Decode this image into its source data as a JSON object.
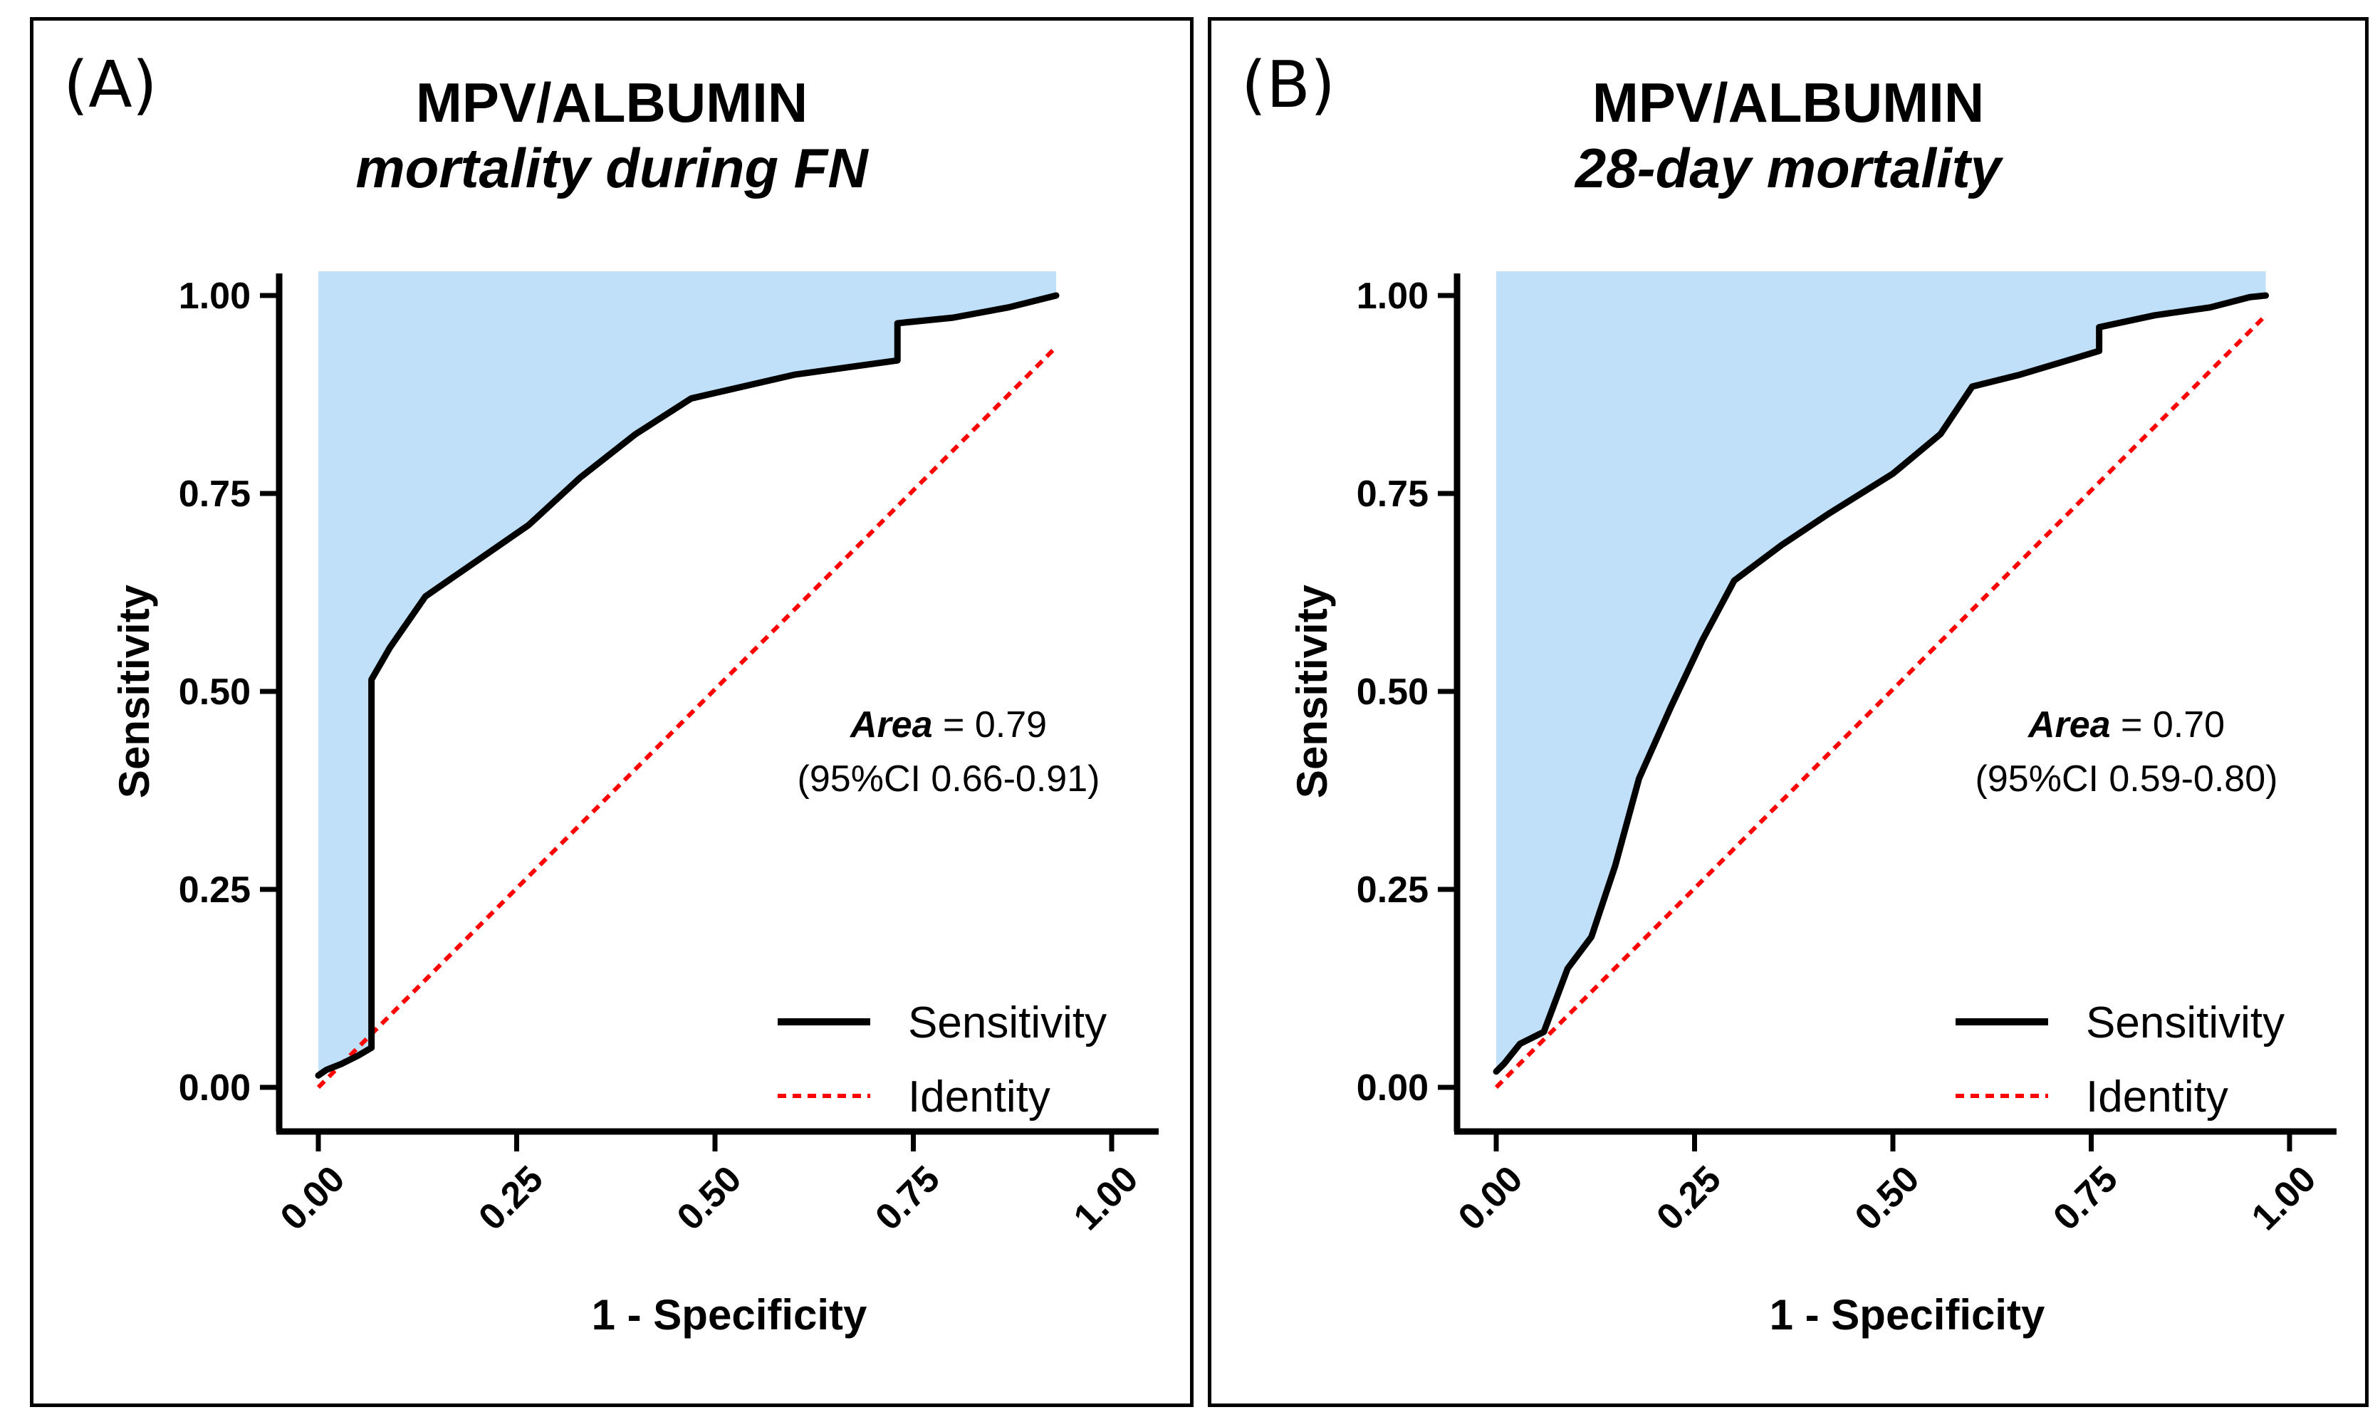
{
  "colors": {
    "shade": "#c0dff8",
    "curve": "#000000",
    "identity": "#ff0000",
    "axis": "#000000"
  },
  "chart_data": [
    {
      "type": "line",
      "panel_label": "(A)",
      "title": "MPV/ALBUMIN",
      "subtitle": "mortality during FN",
      "xlabel": "1 - Specificity",
      "ylabel": "Sensitivity",
      "xlim": [
        0,
        1
      ],
      "ylim": [
        0,
        1
      ],
      "xticks": [
        "0.00",
        "0.25",
        "0.50",
        "0.75",
        "1.00"
      ],
      "yticks": [
        "0.00",
        "0.25",
        "0.50",
        "0.75",
        "1.00"
      ],
      "annotation": {
        "area_label": "Area",
        "area_value": "= 0.79",
        "ci": "(95%CI 0.66-0.91)"
      },
      "legend": [
        {
          "name": "Sensitivity",
          "style": "solid"
        },
        {
          "name": "Identity",
          "style": "dotted"
        }
      ],
      "series": [
        {
          "name": "Sensitivity",
          "x": [
            0,
            0.01,
            0.03,
            0.05,
            0.067,
            0.067,
            0.09,
            0.135,
            0.2,
            0.265,
            0.33,
            0.4,
            0.47,
            0.6,
            0.73,
            0.73,
            0.8,
            0.87,
            0.93
          ],
          "y": [
            0.015,
            0.022,
            0.03,
            0.04,
            0.05,
            0.515,
            0.555,
            0.62,
            0.665,
            0.71,
            0.77,
            0.825,
            0.87,
            0.9,
            0.918,
            0.965,
            0.972,
            0.985,
            1.0
          ]
        },
        {
          "name": "Identity",
          "x": [
            0,
            0.93
          ],
          "y": [
            0,
            0.935
          ]
        }
      ],
      "shade_xmax": 0.93
    },
    {
      "type": "line",
      "panel_label": "(B)",
      "title": "MPV/ALBUMIN",
      "subtitle": "28-day mortality",
      "xlabel": "1 - Specificity",
      "ylabel": "Sensitivity",
      "xlim": [
        0,
        1
      ],
      "ylim": [
        0,
        1
      ],
      "xticks": [
        "0.00",
        "0.25",
        "0.50",
        "0.75",
        "1.00"
      ],
      "yticks": [
        "0.00",
        "0.25",
        "0.50",
        "0.75",
        "1.00"
      ],
      "annotation": {
        "area_label": "Area",
        "area_value": "= 0.70",
        "ci": "(95%CI 0.59-0.80)"
      },
      "legend": [
        {
          "name": "Sensitivity",
          "style": "solid"
        },
        {
          "name": "Identity",
          "style": "dotted"
        }
      ],
      "series": [
        {
          "name": "Sensitivity",
          "x": [
            0,
            0.01,
            0.03,
            0.06,
            0.09,
            0.12,
            0.15,
            0.18,
            0.22,
            0.26,
            0.3,
            0.36,
            0.42,
            0.5,
            0.56,
            0.6,
            0.66,
            0.76,
            0.76,
            0.83,
            0.9,
            0.95,
            0.97
          ],
          "y": [
            0.02,
            0.03,
            0.055,
            0.07,
            0.15,
            0.19,
            0.28,
            0.39,
            0.48,
            0.565,
            0.64,
            0.685,
            0.725,
            0.775,
            0.825,
            0.885,
            0.9,
            0.93,
            0.96,
            0.975,
            0.985,
            0.998,
            1.0
          ]
        },
        {
          "name": "Identity",
          "x": [
            0,
            0.97
          ],
          "y": [
            0,
            0.975
          ]
        }
      ],
      "shade_xmax": 0.97
    }
  ]
}
